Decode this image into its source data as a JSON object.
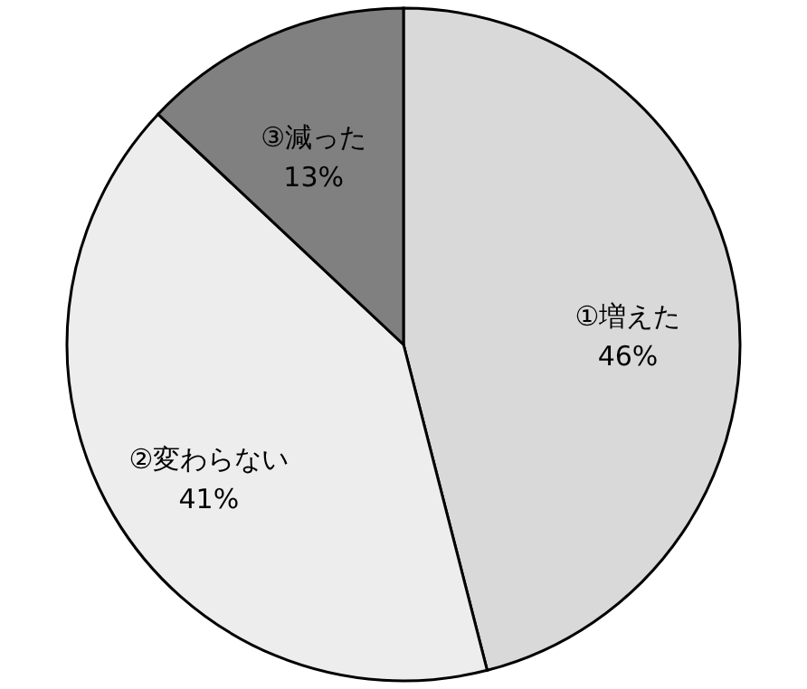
{
  "chart_data": {
    "type": "pie",
    "categories": [
      "①増えた",
      "②変わらない",
      "③減った"
    ],
    "values": [
      46,
      41,
      13
    ],
    "colors": [
      "#d9d9d9",
      "#ededed",
      "#808080"
    ],
    "value_labels": [
      "46%",
      "41%",
      "13%"
    ],
    "legend": false
  }
}
